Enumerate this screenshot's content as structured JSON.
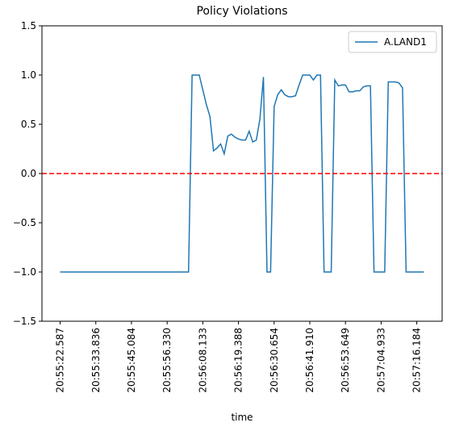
{
  "chart_data": {
    "type": "line",
    "title": "Policy Violations",
    "xlabel": "time",
    "categories": [
      "20:55:22.587",
      null,
      null,
      null,
      null,
      null,
      null,
      null,
      null,
      null,
      "20:55:33.836",
      null,
      null,
      null,
      null,
      null,
      null,
      null,
      null,
      null,
      "20:55:45.084",
      null,
      null,
      null,
      null,
      null,
      null,
      null,
      null,
      null,
      "20:55:56.330",
      null,
      null,
      null,
      null,
      null,
      null,
      null,
      null,
      null,
      "20:56:08.133",
      null,
      null,
      null,
      null,
      null,
      null,
      null,
      null,
      null,
      "20:56:19.388",
      null,
      null,
      null,
      null,
      null,
      null,
      null,
      null,
      null,
      "20:56:30.654",
      null,
      null,
      null,
      null,
      null,
      null,
      null,
      null,
      null,
      "20:56:41.910",
      null,
      null,
      null,
      null,
      null,
      null,
      null,
      null,
      null,
      "20:56:53.649",
      null,
      null,
      null,
      null,
      null,
      null,
      null,
      null,
      null,
      "20:57:04.933",
      null,
      null,
      null,
      null,
      null,
      null,
      null,
      null,
      null,
      "20:57:16.184",
      null,
      null
    ],
    "series": [
      {
        "name": "A.LAND1",
        "color": "#1f77b4",
        "values": [
          -1,
          -1,
          -1,
          -1,
          -1,
          -1,
          -1,
          -1,
          -1,
          -1,
          -1,
          -1,
          -1,
          -1,
          -1,
          -1,
          -1,
          -1,
          -1,
          -1,
          -1,
          -1,
          -1,
          -1,
          -1,
          -1,
          -1,
          -1,
          -1,
          -1,
          -1,
          -1,
          -1,
          -1,
          -1,
          -1,
          -1,
          1,
          1,
          1,
          0.85,
          0.7,
          0.58,
          0.23,
          0.26,
          0.3,
          0.2,
          0.38,
          0.4,
          0.37,
          0.35,
          0.34,
          0.34,
          0.43,
          0.32,
          0.34,
          0.55,
          0.98,
          -1,
          -1,
          0.68,
          0.8,
          0.85,
          0.8,
          0.78,
          0.78,
          0.79,
          0.9,
          1,
          1,
          1,
          0.95,
          1,
          1,
          -1,
          -1,
          -1,
          0.95,
          0.89,
          0.9,
          0.9,
          0.83,
          0.83,
          0.84,
          0.84,
          0.88,
          0.89,
          0.89,
          -1,
          -1,
          -1,
          -1,
          0.93,
          0.93,
          0.93,
          0.92,
          0.87,
          -1,
          -1,
          -1,
          -1,
          -1,
          -1
        ]
      }
    ],
    "ylim": [
      -1.5,
      1.5
    ],
    "yticks": [
      {
        "value": -1.5,
        "label": "−1.5"
      },
      {
        "value": -1,
        "label": "−1.0"
      },
      {
        "value": -0.5,
        "label": "−0.5"
      },
      {
        "value": 0,
        "label": "0.0"
      },
      0.5,
      {
        "value": 1,
        "label": "1.0"
      },
      1.5
    ],
    "hline": {
      "value": 0,
      "color": "#ff0000"
    },
    "legend": "upper right"
  }
}
